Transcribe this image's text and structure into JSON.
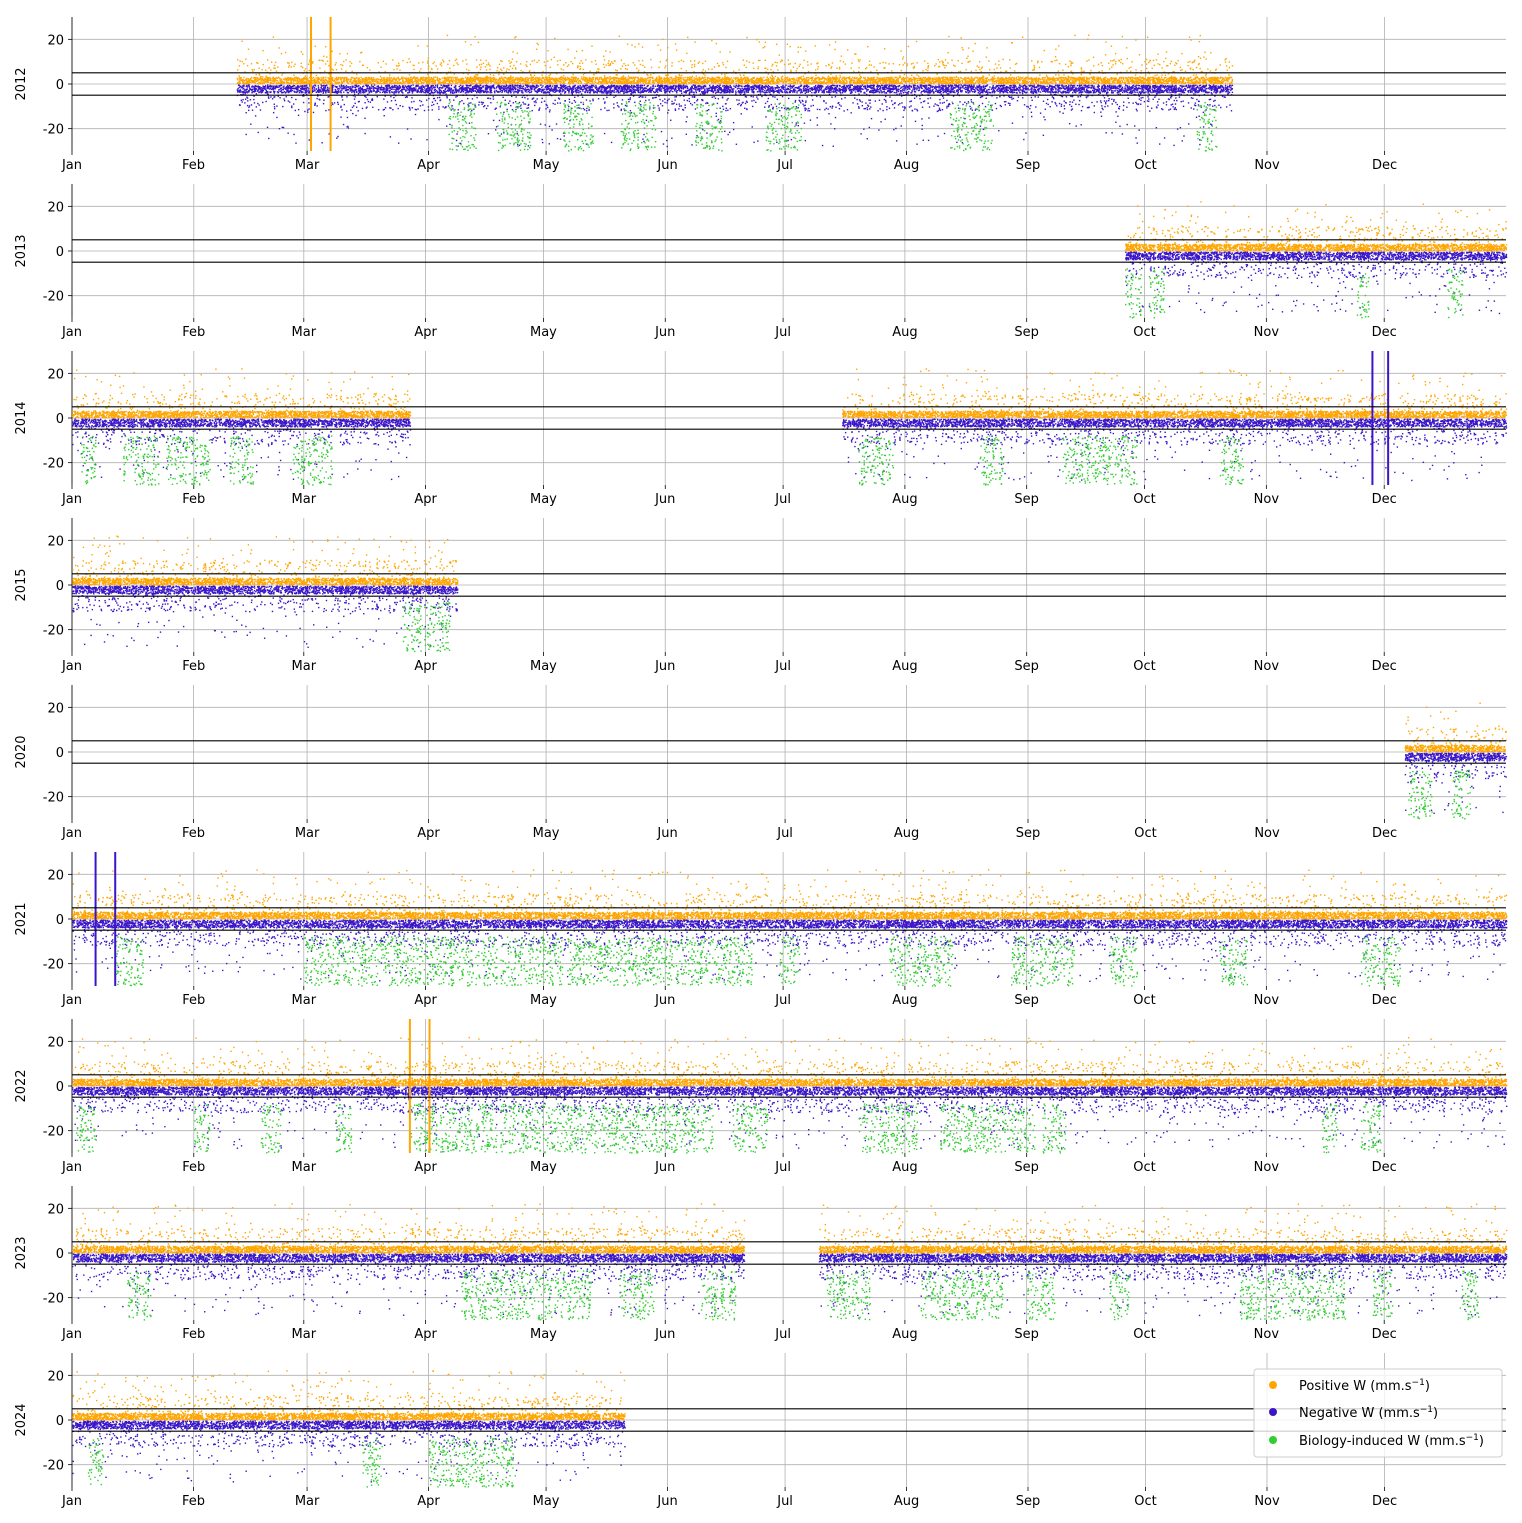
{
  "chart_data": {
    "type": "scatter",
    "x_tick_labels": [
      "Jan",
      "Feb",
      "Mar",
      "Apr",
      "May",
      "Jun",
      "Jul",
      "Aug",
      "Sep",
      "Oct",
      "Nov",
      "Dec"
    ],
    "y_ticks": [
      -20,
      0,
      20
    ],
    "ylim": [
      -30,
      30
    ],
    "threshold_lines": [
      5,
      -5
    ],
    "grid": true,
    "legend_position": "lower-right of last panel",
    "legend": [
      {
        "key": "positive",
        "base": "Positive W (mm.s",
        "exp": "−1",
        "tail": ")",
        "color": "#FFA500"
      },
      {
        "key": "negative",
        "base": "Negative W (mm.s",
        "exp": "−1",
        "tail": ")",
        "color": "#3A16C8"
      },
      {
        "key": "biology",
        "base": "Biology-induced W (mm.s",
        "exp": "−1",
        "tail": ")",
        "color": "#32CD32"
      }
    ],
    "panels": [
      {
        "year": "2012",
        "segments": [
          [
            "2012-02-12",
            "2012-10-22"
          ]
        ],
        "spikes": [
          {
            "date": "2012-03-02",
            "color": "orange"
          },
          {
            "date": "2012-03-07",
            "color": "orange"
          }
        ],
        "bio_ranges": [
          [
            "2012-04-06",
            "2012-04-12"
          ],
          [
            "2012-04-18",
            "2012-04-26"
          ],
          [
            "2012-05-05",
            "2012-05-12"
          ],
          [
            "2012-05-20",
            "2012-05-28"
          ],
          [
            "2012-06-08",
            "2012-06-14"
          ],
          [
            "2012-06-26",
            "2012-07-04"
          ],
          [
            "2012-08-12",
            "2012-08-22"
          ],
          [
            "2012-10-14",
            "2012-10-18"
          ]
        ]
      },
      {
        "year": "2013",
        "segments": [
          [
            "2013-09-26",
            "2013-12-31"
          ]
        ],
        "spikes": [],
        "bio_ranges": [
          [
            "2013-09-26",
            "2013-09-29"
          ],
          [
            "2013-10-02",
            "2013-10-05"
          ],
          [
            "2013-11-24",
            "2013-11-26"
          ],
          [
            "2013-12-17",
            "2013-12-20"
          ]
        ]
      },
      {
        "year": "2014",
        "segments": [
          [
            "2014-01-01",
            "2014-03-27"
          ],
          [
            "2014-07-16",
            "2014-12-31"
          ]
        ],
        "spikes": [
          {
            "date": "2014-11-28",
            "color": "blue"
          },
          {
            "date": "2014-12-02",
            "color": "blue"
          }
        ],
        "bio_ranges": [
          [
            "2014-01-03",
            "2014-01-06"
          ],
          [
            "2014-01-14",
            "2014-01-22"
          ],
          [
            "2014-01-25",
            "2014-02-04"
          ],
          [
            "2014-02-10",
            "2014-02-15"
          ],
          [
            "2014-02-26",
            "2014-03-07"
          ],
          [
            "2014-07-20",
            "2014-07-28"
          ],
          [
            "2014-08-20",
            "2014-08-25"
          ],
          [
            "2014-09-10",
            "2014-09-28"
          ],
          [
            "2014-10-20",
            "2014-10-25"
          ]
        ]
      },
      {
        "year": "2015",
        "segments": [
          [
            "2015-01-01",
            "2015-04-08"
          ]
        ],
        "spikes": [],
        "bio_ranges": [
          [
            "2015-03-26",
            "2015-04-06"
          ]
        ]
      },
      {
        "year": "2020",
        "segments": [
          [
            "2020-12-06",
            "2020-12-31"
          ]
        ],
        "spikes": [],
        "bio_ranges": [
          [
            "2020-12-07",
            "2020-12-12"
          ],
          [
            "2020-12-18",
            "2020-12-22"
          ]
        ]
      },
      {
        "year": "2021",
        "segments": [
          [
            "2021-01-01",
            "2021-12-31"
          ]
        ],
        "spikes": [
          {
            "date": "2021-01-07",
            "color": "blue"
          },
          {
            "date": "2021-01-12",
            "color": "blue"
          }
        ],
        "bio_ranges": [
          [
            "2021-01-12",
            "2021-01-18"
          ],
          [
            "2021-03-01",
            "2021-04-18"
          ],
          [
            "2021-04-20",
            "2021-06-22"
          ],
          [
            "2021-06-30",
            "2021-07-04"
          ],
          [
            "2021-07-28",
            "2021-08-12"
          ],
          [
            "2021-08-28",
            "2021-09-12"
          ],
          [
            "2021-09-22",
            "2021-09-28"
          ],
          [
            "2021-10-20",
            "2021-10-26"
          ],
          [
            "2021-11-25",
            "2021-12-04"
          ]
        ]
      },
      {
        "year": "2022",
        "segments": [
          [
            "2022-01-01",
            "2022-12-31"
          ]
        ],
        "spikes": [
          {
            "date": "2022-03-28",
            "color": "orange"
          },
          {
            "date": "2022-04-02",
            "color": "orange"
          }
        ],
        "bio_ranges": [
          [
            "2022-01-02",
            "2022-01-06"
          ],
          [
            "2022-02-01",
            "2022-02-04"
          ],
          [
            "2022-02-18",
            "2022-02-22"
          ],
          [
            "2022-03-09",
            "2022-03-12"
          ],
          [
            "2022-03-28",
            "2022-04-18"
          ],
          [
            "2022-04-20",
            "2022-06-12"
          ],
          [
            "2022-06-18",
            "2022-06-26"
          ],
          [
            "2022-07-20",
            "2022-08-03"
          ],
          [
            "2022-08-10",
            "2022-09-02"
          ],
          [
            "2022-09-05",
            "2022-09-10"
          ],
          [
            "2022-11-15",
            "2022-11-18"
          ],
          [
            "2022-11-25",
            "2022-11-29"
          ]
        ]
      },
      {
        "year": "2023",
        "segments": [
          [
            "2023-01-01",
            "2023-06-20"
          ],
          [
            "2023-07-10",
            "2023-12-31"
          ]
        ],
        "spikes": [],
        "bio_ranges": [
          [
            "2023-01-15",
            "2023-01-20"
          ],
          [
            "2023-04-10",
            "2023-05-12"
          ],
          [
            "2023-05-20",
            "2023-05-28"
          ],
          [
            "2023-06-10",
            "2023-06-18"
          ],
          [
            "2023-07-12",
            "2023-07-22"
          ],
          [
            "2023-08-05",
            "2023-08-25"
          ],
          [
            "2023-09-01",
            "2023-09-07"
          ],
          [
            "2023-09-22",
            "2023-09-26"
          ],
          [
            "2023-10-25",
            "2023-11-20"
          ],
          [
            "2023-11-28",
            "2023-12-02"
          ],
          [
            "2023-12-20",
            "2023-12-24"
          ]
        ]
      },
      {
        "year": "2024",
        "segments": [
          [
            "2024-01-01",
            "2024-05-20"
          ]
        ],
        "spikes": [],
        "bio_ranges": [
          [
            "2024-01-05",
            "2024-01-08"
          ],
          [
            "2024-03-15",
            "2024-03-19"
          ],
          [
            "2024-04-01",
            "2024-04-22"
          ]
        ]
      }
    ]
  }
}
